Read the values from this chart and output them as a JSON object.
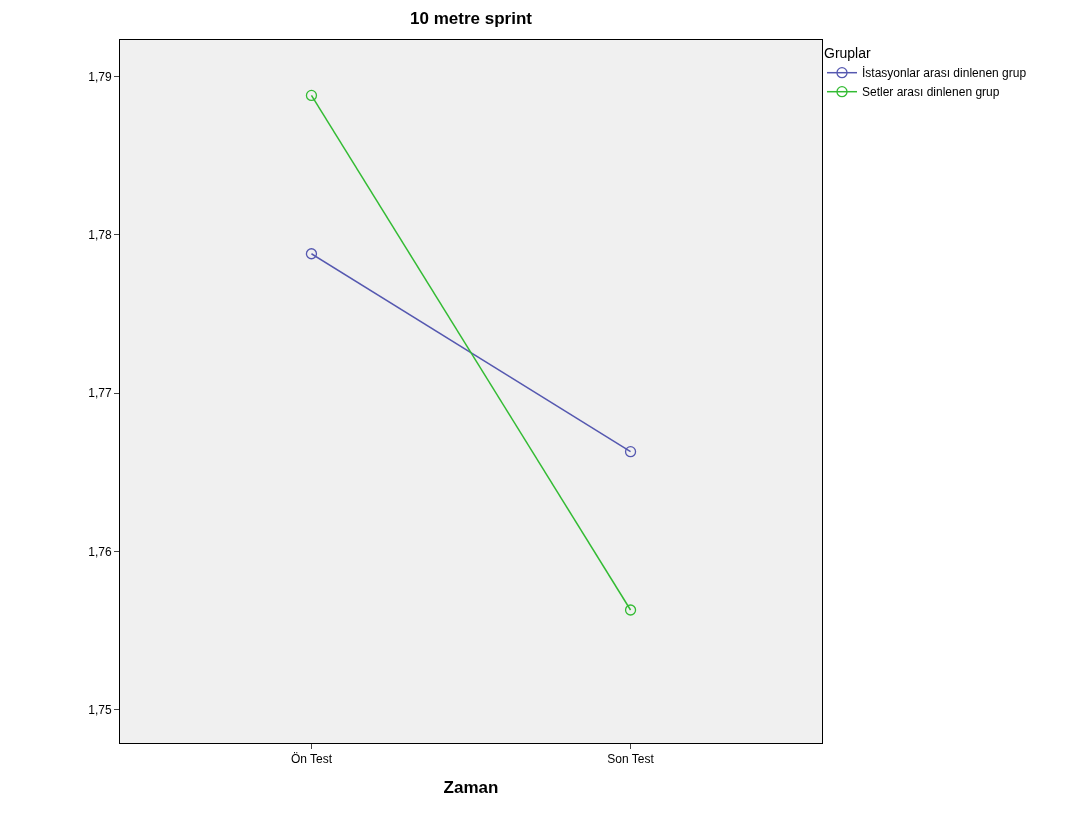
{
  "chart_data": {
    "type": "line",
    "title": "10 metre sprint",
    "xlabel": "Zaman",
    "legend_title": "Gruplar",
    "categories": [
      "Ön Test",
      "Son Test"
    ],
    "series": [
      {
        "name": "İstasyonlar arası dinlenen grup",
        "color": "#5558b0",
        "values": [
          1.7788,
          1.7663
        ]
      },
      {
        "name": "Setler arası dinlenen grup",
        "color": "#33bb33",
        "values": [
          1.7888,
          1.7563
        ]
      }
    ],
    "ylim": [
      1.7479,
      1.7923
    ],
    "yticks": [
      {
        "value": 1.75,
        "label": "1,75"
      },
      {
        "value": 1.76,
        "label": "1,76"
      },
      {
        "value": 1.77,
        "label": "1,77"
      },
      {
        "value": 1.78,
        "label": "1,78"
      },
      {
        "value": 1.79,
        "label": "1,79"
      }
    ],
    "grid": false,
    "legend": "top right",
    "marker": "circle",
    "line_style": "solid"
  }
}
